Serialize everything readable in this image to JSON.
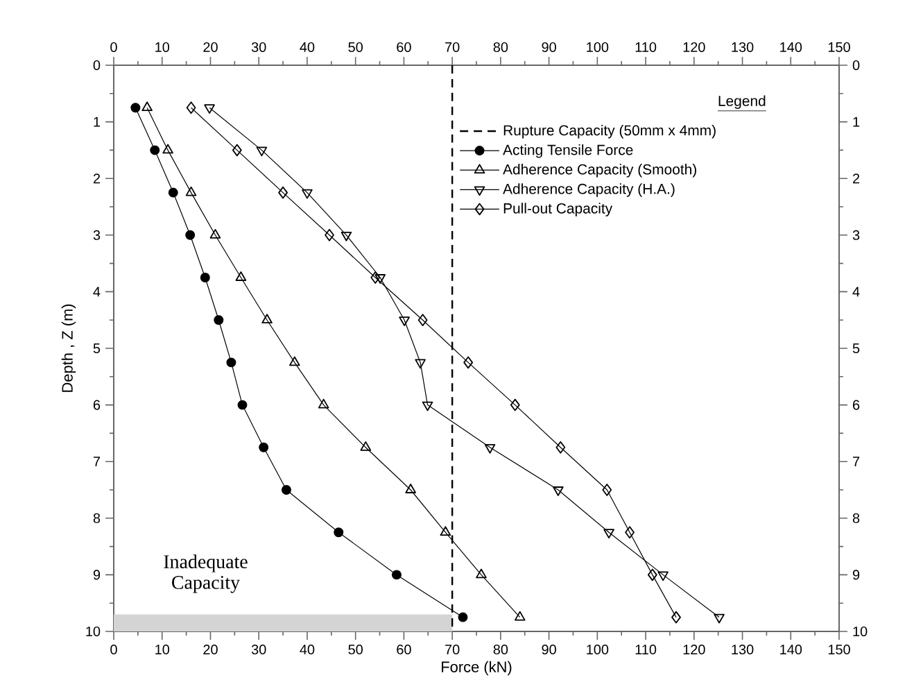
{
  "chart_data": {
    "type": "line",
    "xlabel": "Force (kN)",
    "ylabel": "Depth , Z (m)",
    "legend_title": "Legend",
    "legend": "top right",
    "grid": false,
    "xlim": [
      0,
      150
    ],
    "xticks": [
      0,
      10,
      20,
      30,
      40,
      50,
      60,
      70,
      80,
      90,
      100,
      110,
      120,
      130,
      140,
      150
    ],
    "x2lim": [
      0,
      150
    ],
    "x2ticks": [
      0,
      10,
      20,
      30,
      40,
      50,
      60,
      70,
      80,
      90,
      100,
      110,
      120,
      130,
      140,
      150
    ],
    "ylim": [
      10,
      0
    ],
    "yticks": [
      0,
      1,
      2,
      3,
      4,
      5,
      6,
      7,
      8,
      9,
      10
    ],
    "y2lim": [
      10,
      0
    ],
    "y2ticks": [
      0,
      1,
      2,
      3,
      4,
      5,
      6,
      7,
      8,
      9,
      10
    ],
    "series": [
      {
        "name": "Acting Tensile Force",
        "color": "#000000",
        "marker": "circle",
        "line_style": "solid",
        "x": [
          4.5,
          8.5,
          12.3,
          15.8,
          18.9,
          21.7,
          24.3,
          26.6,
          31.0,
          35.7,
          46.5,
          58.5,
          72.2
        ],
        "values": [
          0.75,
          1.5,
          2.25,
          3,
          3.75,
          4.5,
          5.25,
          6,
          6.75,
          7.5,
          8.25,
          9,
          9.75
        ]
      },
      {
        "name": "Adherence Capacity (Smooth)",
        "color": "#000000",
        "marker": "triangle",
        "line_style": "solid",
        "x": [
          6.9,
          11.2,
          16.0,
          21.0,
          26.3,
          31.7,
          37.4,
          43.4,
          52.1,
          61.4,
          68.6,
          76.0,
          84.0
        ],
        "values": [
          0.75,
          1.5,
          2.25,
          3,
          3.75,
          4.5,
          5.25,
          6,
          6.75,
          7.5,
          8.25,
          9,
          9.75
        ]
      },
      {
        "name": "Adherence Capacity (H.A.)",
        "color": "#000000",
        "marker": "triangle-down",
        "line_style": "solid",
        "x": [
          19.8,
          30.6,
          40.0,
          48.1,
          55.1,
          60.1,
          63.4,
          64.9,
          77.8,
          91.9,
          102.4,
          113.6,
          125.2
        ],
        "values": [
          0.75,
          1.5,
          2.25,
          3,
          3.75,
          4.5,
          5.25,
          6,
          6.75,
          7.5,
          8.25,
          9,
          9.75
        ]
      },
      {
        "name": "Pull-out Capacity",
        "color": "#000000",
        "marker": "diamond",
        "line_style": "solid",
        "x": [
          16.0,
          25.5,
          35.0,
          44.6,
          54.1,
          63.9,
          73.3,
          83.0,
          92.4,
          102.0,
          106.7,
          111.4,
          116.3
        ],
        "values": [
          0.75,
          1.5,
          2.25,
          3,
          3.75,
          4.5,
          5.25,
          6,
          6.75,
          7.5,
          8.25,
          9,
          9.75
        ]
      }
    ],
    "ref_lines": [
      {
        "axis": "x",
        "value": 70,
        "label": "Rupture Capacity (50mm x 4mm)",
        "color": "#000000",
        "line_style": "dashed"
      }
    ],
    "bands": [
      {
        "axis": "y",
        "from": 9.7,
        "to": 10,
        "label": "Inadequate Capacity",
        "color": "#d4d4d4"
      }
    ]
  }
}
